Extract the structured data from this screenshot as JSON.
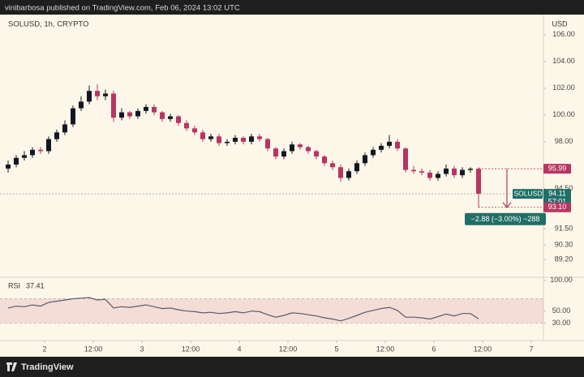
{
  "chart_data": {
    "type": "candlestick",
    "header": "vinibarbosa published on TradingView.com, Feb 06, 2024 13:02 UTC",
    "title": "SOLUSD, 1h, CRYPTO",
    "currency": "USD",
    "brand": "TradingView",
    "x": [
      -9,
      -7,
      -5,
      -3,
      -1,
      1,
      3,
      5,
      7,
      9,
      11,
      13,
      15,
      17,
      19,
      21,
      23,
      25,
      27,
      29,
      31,
      33,
      35,
      37,
      39,
      41,
      43,
      45,
      47,
      49,
      51,
      53,
      55,
      57,
      59,
      61,
      63,
      65,
      67,
      69,
      71,
      73,
      75,
      77,
      79,
      81,
      83,
      85,
      87,
      89,
      91,
      93,
      95,
      97,
      99,
      101,
      103,
      105,
      107
    ],
    "open": [
      96.0,
      96.3,
      96.8,
      97.0,
      97.4,
      97.3,
      98.2,
      98.7,
      99.3,
      100.5,
      101.0,
      101.8,
      101.4,
      101.6,
      99.8,
      100.2,
      99.9,
      100.3,
      100.6,
      100.2,
      99.7,
      99.9,
      99.4,
      99.0,
      98.7,
      98.2,
      98.4,
      97.9,
      98.0,
      98.3,
      98.0,
      98.4,
      98.2,
      97.5,
      96.9,
      97.3,
      97.8,
      97.6,
      97.3,
      96.9,
      96.4,
      96.1,
      95.3,
      95.8,
      96.4,
      97.0,
      97.4,
      97.7,
      98.0,
      97.5,
      95.9,
      95.8,
      95.7,
      95.3,
      95.6,
      96.0,
      95.5,
      95.9,
      95.99
    ],
    "high": [
      96.6,
      97.0,
      97.3,
      97.6,
      97.6,
      98.4,
      98.9,
      99.6,
      100.7,
      101.4,
      102.2,
      102.3,
      101.9,
      101.8,
      100.5,
      100.3,
      100.5,
      100.8,
      100.8,
      100.3,
      100.1,
      100.0,
      99.6,
      99.2,
      98.9,
      98.6,
      98.6,
      98.2,
      98.5,
      98.4,
      98.6,
      98.6,
      98.3,
      97.6,
      97.5,
      98.0,
      97.9,
      97.7,
      97.4,
      97.0,
      96.6,
      96.3,
      96.0,
      96.6,
      97.2,
      97.6,
      97.9,
      98.5,
      98.2,
      97.6,
      96.2,
      96.0,
      95.9,
      95.8,
      96.3,
      96.2,
      96.1,
      96.1,
      96.1
    ],
    "low": [
      95.7,
      96.1,
      96.6,
      96.8,
      97.1,
      97.1,
      98.0,
      98.5,
      99.1,
      100.3,
      100.8,
      101.1,
      101.1,
      99.5,
      99.6,
      99.7,
      99.7,
      100.1,
      100.0,
      99.5,
      99.5,
      99.2,
      98.8,
      98.5,
      98.0,
      98.0,
      97.7,
      97.7,
      97.8,
      97.8,
      97.8,
      98.0,
      97.3,
      96.7,
      96.7,
      97.1,
      97.4,
      97.1,
      96.7,
      96.2,
      95.9,
      95.0,
      95.1,
      95.6,
      96.2,
      96.8,
      97.2,
      97.5,
      97.3,
      95.7,
      95.6,
      95.5,
      95.1,
      95.1,
      95.4,
      95.3,
      95.3,
      95.7,
      93.1
    ],
    "close": [
      96.3,
      96.8,
      97.0,
      97.4,
      97.3,
      98.2,
      98.7,
      99.3,
      100.5,
      101.0,
      101.8,
      101.4,
      101.6,
      99.8,
      100.2,
      99.9,
      100.3,
      100.6,
      100.2,
      99.7,
      99.9,
      99.4,
      99.0,
      98.7,
      98.2,
      98.4,
      97.9,
      98.0,
      98.3,
      98.0,
      98.4,
      98.2,
      97.5,
      96.9,
      97.3,
      97.8,
      97.6,
      97.3,
      96.9,
      96.4,
      96.1,
      95.3,
      95.8,
      96.4,
      97.0,
      97.4,
      97.7,
      98.0,
      97.5,
      95.9,
      95.8,
      95.7,
      95.3,
      95.6,
      96.0,
      95.5,
      95.9,
      95.99,
      94.11
    ],
    "up_color": "#131722",
    "down_color": "#b83562",
    "xlim": [
      -11,
      123
    ],
    "xticks": [
      {
        "value": 0,
        "label": "2"
      },
      {
        "value": 12,
        "label": "12:00"
      },
      {
        "value": 24,
        "label": "3"
      },
      {
        "value": 36,
        "label": "12:00"
      },
      {
        "value": 48,
        "label": "4"
      },
      {
        "value": 60,
        "label": "12:00"
      },
      {
        "value": 72,
        "label": "5"
      },
      {
        "value": 84,
        "label": "12:00"
      },
      {
        "value": 96,
        "label": "6"
      },
      {
        "value": 108,
        "label": "12:00"
      },
      {
        "value": 120,
        "label": "7"
      }
    ],
    "ylim": [
      88,
      107.5
    ],
    "yticks": [
      {
        "value": 106,
        "label": "106.00"
      },
      {
        "value": 104,
        "label": "104.00"
      },
      {
        "value": 102,
        "label": "102.00"
      },
      {
        "value": 100,
        "label": "100.00"
      },
      {
        "value": 98,
        "label": "98.00"
      },
      {
        "value": 94.5,
        "label": "94.50"
      },
      {
        "value": 91.5,
        "label": "91.50"
      },
      {
        "value": 90.3,
        "label": "90.30"
      },
      {
        "value": 89.2,
        "label": "89.20"
      }
    ],
    "price_labels": [
      {
        "value": 95.99,
        "color": "#b83562"
      },
      {
        "value": 94.11,
        "name": "SOLUSD",
        "countdown": "57:01",
        "color": "#1f6f67"
      },
      {
        "value": 93.1,
        "label": "93.10",
        "color": "#b83562"
      }
    ],
    "measure": {
      "text": "−2.88 (−3.00%) −288",
      "color": "#1f6f67"
    },
    "rsi": {
      "name": "RSI",
      "color": "#5b5b6e",
      "values": [
        55,
        58,
        57,
        60,
        58,
        64,
        66,
        68,
        70,
        71,
        72,
        68,
        69,
        55,
        57,
        56,
        58,
        60,
        57,
        54,
        55,
        52,
        50,
        49,
        47,
        48,
        46,
        47,
        49,
        47,
        50,
        49,
        44,
        40,
        43,
        47,
        46,
        44,
        42,
        39,
        37,
        34,
        38,
        43,
        48,
        51,
        54,
        56,
        51,
        40,
        40,
        39,
        37,
        41,
        45,
        42,
        46,
        46,
        37.41
      ],
      "ylim": [
        2,
        105
      ],
      "yticks": [
        {
          "value": 100,
          "label": "100.00"
        },
        {
          "value": 50,
          "label": "50.00"
        },
        {
          "value": 30,
          "label": "30.00"
        }
      ],
      "band": [
        30,
        70
      ]
    }
  }
}
